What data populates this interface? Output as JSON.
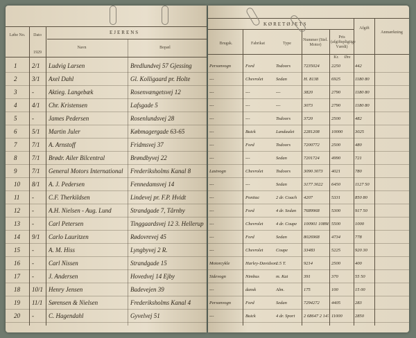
{
  "left_page": {
    "section_title": "EJERENS",
    "headers": {
      "no": "Løbe No.",
      "date": "Dato",
      "year": "1929",
      "name": "Navn",
      "address": "Bopæl"
    },
    "rows": [
      {
        "no": "1",
        "date": "2/1",
        "name": "Ludvig Larsen",
        "address": "Bredlundvej 57 Gjessing"
      },
      {
        "no": "2",
        "date": "3/1",
        "name": "Axel Dahl",
        "address": "Gl. Kolligaard pr. Holte"
      },
      {
        "no": "3",
        "date": "-",
        "name": "Aktieg. Langebæk",
        "address": "Rosenvængetsvej 12"
      },
      {
        "no": "4",
        "date": "4/1",
        "name": "Chr. Kristensen",
        "address": "Lafsgade 5"
      },
      {
        "no": "5",
        "date": "-",
        "name": "James Pedersen",
        "address": "Rosenlundsvej 28"
      },
      {
        "no": "6",
        "date": "5/1",
        "name": "Martin Juler",
        "address": "Købmagergade 63-65"
      },
      {
        "no": "7",
        "date": "7/1",
        "name": "A. Arnstoff",
        "address": "Fridmsvej 37"
      },
      {
        "no": "8",
        "date": "7/1",
        "name": "Brødr. Ailer Bilcentral",
        "address": "Brøndbyvej 22"
      },
      {
        "no": "9",
        "date": "7/1",
        "name": "General Motors International",
        "address": "Frederiksholms Kanal 8"
      },
      {
        "no": "10",
        "date": "8/1",
        "name": "A. J. Pedersen",
        "address": "Fennedamsvej 14"
      },
      {
        "no": "11",
        "date": "-",
        "name": "C.F. Therkildsen",
        "address": "Lindevej pr. F.P. Hvidt"
      },
      {
        "no": "12",
        "date": "-",
        "name": "A.H. Nielsen - Aug. Lund",
        "address": "Strandgade 7, Tårnby"
      },
      {
        "no": "13",
        "date": "-",
        "name": "Carl Petersen",
        "address": "Tinggaardsvej 12 3. Hellerup"
      },
      {
        "no": "14",
        "date": "9/1",
        "name": "Carlo Lauritzen",
        "address": "Rødovrevej 45"
      },
      {
        "no": "15",
        "date": "-",
        "name": "A. M. Hiss",
        "address": "Lyngbyvej 2 R."
      },
      {
        "no": "16",
        "date": "-",
        "name": "Carl Nissen",
        "address": "Strandgade 15"
      },
      {
        "no": "17",
        "date": "-",
        "name": "J. Andersen",
        "address": "Hovedvej 14 Ejby"
      },
      {
        "no": "18",
        "date": "10/1",
        "name": "Henry Jensen",
        "address": "Badevejen 39"
      },
      {
        "no": "19",
        "date": "11/1",
        "name": "Sørensen & Nielsen",
        "address": "Frederiksholms Kanal 4"
      },
      {
        "no": "20",
        "date": "-",
        "name": "C. Hagendahl",
        "address": "Gyvelvej 51"
      }
    ]
  },
  "right_page": {
    "section_title": "KØRETØJETS",
    "headers": {
      "use": "Brugsk.",
      "make": "Fabrikat",
      "type": "Type",
      "number": "Nummer (Stel. Motor)",
      "price": "Pris (afgiftspligtige Værdi)",
      "tax": "Afgift",
      "remarks": "Anmærkning",
      "kr": "Kr.",
      "ore": "Øre"
    },
    "rows": [
      {
        "use": "Personvogn",
        "make": "Ford",
        "type": "Todoors",
        "number": "7235024",
        "price": "2250",
        "tax": "442"
      },
      {
        "use": "---",
        "make": "Chevrolet",
        "type": "Sedan",
        "number": "H. 8138",
        "price": "6925",
        "tax": "1180 80"
      },
      {
        "use": "---",
        "make": "---",
        "type": "---",
        "number": "3820",
        "price": "2790",
        "tax": "1180 80"
      },
      {
        "use": "---",
        "make": "---",
        "type": "---",
        "number": "3073",
        "price": "2790",
        "tax": "1180 80"
      },
      {
        "use": "---",
        "make": "---",
        "type": "Todoors",
        "number": "3720",
        "price": "2500",
        "tax": "482"
      },
      {
        "use": "---",
        "make": "Buick",
        "type": "Landaulet",
        "number": "2281208",
        "price": "10000",
        "tax": "3025"
      },
      {
        "use": "---",
        "make": "Ford",
        "type": "Todoors",
        "number": "7200772",
        "price": "2500",
        "tax": "480"
      },
      {
        "use": "---",
        "make": "---",
        "type": "Sedan",
        "number": "7201724",
        "price": "4990",
        "tax": "721"
      },
      {
        "use": "Lastvogn",
        "make": "Chevrolet",
        "type": "Todoors",
        "number": "3090 3073",
        "price": "4021",
        "tax": "780"
      },
      {
        "use": "---",
        "make": "---",
        "type": "Sedan",
        "number": "3177 3022",
        "price": "6450",
        "tax": "1127 50"
      },
      {
        "use": "---",
        "make": "Pontiac",
        "type": "2 dr. Coach",
        "number": "4207",
        "price": "5331",
        "tax": "850 80"
      },
      {
        "use": "---",
        "make": "Ford",
        "type": "4 dr. Sedan",
        "number": "7689968",
        "price": "5300",
        "tax": "917 50"
      },
      {
        "use": "---",
        "make": "Chevrolet",
        "type": "4 dr. Coupe",
        "number": "100901 10898",
        "price": "5500",
        "tax": "1000"
      },
      {
        "use": "---",
        "make": "Ford",
        "type": "Sedan",
        "number": "8026968",
        "price": "4734",
        "tax": "778"
      },
      {
        "use": "---",
        "make": "Chevrolet",
        "type": "Coupe",
        "number": "33483",
        "price": "5225",
        "tax": "920 30"
      },
      {
        "use": "Motorcykle",
        "make": "Harley-Davidson",
        "type": "2.5 T.",
        "number": "9214",
        "price": "2500",
        "tax": "400"
      },
      {
        "use": "Sidevogn",
        "make": "Nimbus",
        "type": "m. Kat",
        "number": "391",
        "price": "370",
        "tax": "55 50"
      },
      {
        "use": "---",
        "make": "dansk",
        "type": "Alm.",
        "number": "175",
        "price": "100",
        "tax": "15 00"
      },
      {
        "use": "Personvogn",
        "make": "Ford",
        "type": "Sedan",
        "number": "7294272",
        "price": "4405",
        "tax": "283"
      },
      {
        "use": "---",
        "make": "Buick",
        "type": "4 dr. Sport",
        "number": "2 68647 2 14753",
        "price": "11000",
        "tax": "2850"
      }
    ]
  }
}
